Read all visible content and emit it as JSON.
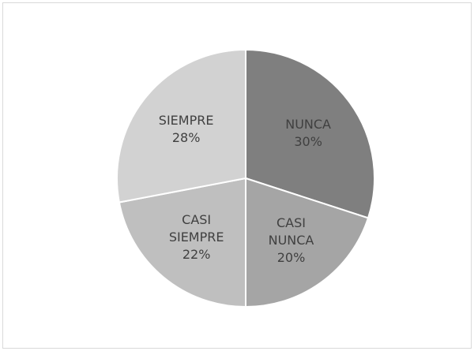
{
  "chart_data": {
    "type": "pie",
    "categories": [
      "NUNCA",
      "CASI NUNCA",
      "CASI SIEMPRE",
      "SIEMPRE"
    ],
    "values": [
      30,
      20,
      22,
      28
    ],
    "value_labels": [
      "30%",
      "20%",
      "22%",
      "28%"
    ],
    "colors": [
      "#7f7f7f",
      "#a5a5a5",
      "#bfbfbf",
      "#d2d2d2"
    ]
  }
}
